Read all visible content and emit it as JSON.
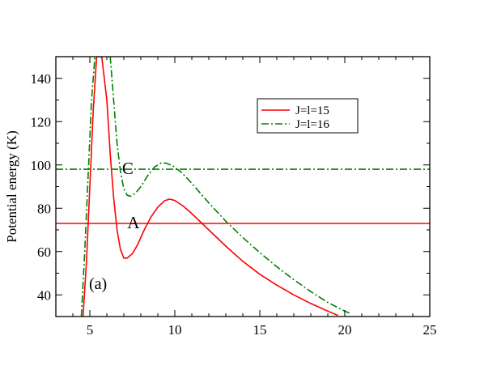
{
  "chart_data": {
    "type": "line",
    "title": "",
    "xlabel": "",
    "ylabel": "Potential energy (K)",
    "xlim": [
      3,
      25
    ],
    "ylim": [
      30,
      150
    ],
    "xticks": [
      5,
      10,
      15,
      20,
      25
    ],
    "yticks": [
      40,
      60,
      80,
      100,
      120,
      140
    ],
    "grid": false,
    "legend_position": "top-right",
    "panel_label": "(a)",
    "series": [
      {
        "name": "J=l=15",
        "color": "#ff0000",
        "style": "solid",
        "points": [
          [
            4.6,
            30
          ],
          [
            4.8,
            55
          ],
          [
            5.0,
            90
          ],
          [
            5.2,
            125
          ],
          [
            5.4,
            150
          ],
          [
            5.7,
            150
          ],
          [
            6.0,
            130
          ],
          [
            6.2,
            105
          ],
          [
            6.4,
            85
          ],
          [
            6.6,
            70
          ],
          [
            6.8,
            61
          ],
          [
            7.0,
            57
          ],
          [
            7.2,
            57
          ],
          [
            7.5,
            59
          ],
          [
            7.8,
            63
          ],
          [
            8.2,
            70
          ],
          [
            8.6,
            76
          ],
          [
            9.0,
            80.5
          ],
          [
            9.4,
            83.5
          ],
          [
            9.7,
            84.2
          ],
          [
            10.0,
            83.6
          ],
          [
            10.5,
            81
          ],
          [
            11.0,
            77.5
          ],
          [
            12.0,
            70
          ],
          [
            13.0,
            62.5
          ],
          [
            14.0,
            55.5
          ],
          [
            15.0,
            49.5
          ],
          [
            16.0,
            44.5
          ],
          [
            17.0,
            40
          ],
          [
            18.0,
            36
          ],
          [
            19.0,
            32.5
          ],
          [
            19.6,
            30.5
          ]
        ]
      },
      {
        "name": "J=l=16",
        "color": "#008000",
        "style": "dashdot",
        "points": [
          [
            4.5,
            30
          ],
          [
            4.7,
            60
          ],
          [
            4.9,
            95
          ],
          [
            5.1,
            130
          ],
          [
            5.3,
            150
          ],
          [
            6.2,
            150
          ],
          [
            6.4,
            130
          ],
          [
            6.6,
            110
          ],
          [
            6.8,
            97
          ],
          [
            7.0,
            89
          ],
          [
            7.2,
            86
          ],
          [
            7.4,
            85.5
          ],
          [
            7.7,
            87
          ],
          [
            8.0,
            90
          ],
          [
            8.4,
            95
          ],
          [
            8.8,
            99
          ],
          [
            9.2,
            101
          ],
          [
            9.5,
            100.8
          ],
          [
            9.9,
            99.5
          ],
          [
            10.4,
            96.5
          ],
          [
            11.0,
            91.5
          ],
          [
            12.0,
            82.5
          ],
          [
            13.0,
            74
          ],
          [
            14.0,
            66.5
          ],
          [
            15.0,
            59.5
          ],
          [
            16.0,
            53
          ],
          [
            17.0,
            47
          ],
          [
            18.0,
            41.5
          ],
          [
            19.0,
            36.5
          ],
          [
            20.0,
            32.5
          ],
          [
            20.3,
            31.5
          ]
        ]
      },
      {
        "name": "",
        "color": "#ff0000",
        "style": "solid",
        "points": [
          [
            3,
            73
          ],
          [
            25,
            73
          ]
        ]
      },
      {
        "name": "",
        "color": "#008000",
        "style": "dashdot",
        "points": [
          [
            3,
            98
          ],
          [
            25,
            98
          ]
        ]
      }
    ],
    "annotations": [
      {
        "text": "A",
        "x": 7.2,
        "y": 73
      },
      {
        "text": "C",
        "x": 6.9,
        "y": 98
      }
    ]
  }
}
